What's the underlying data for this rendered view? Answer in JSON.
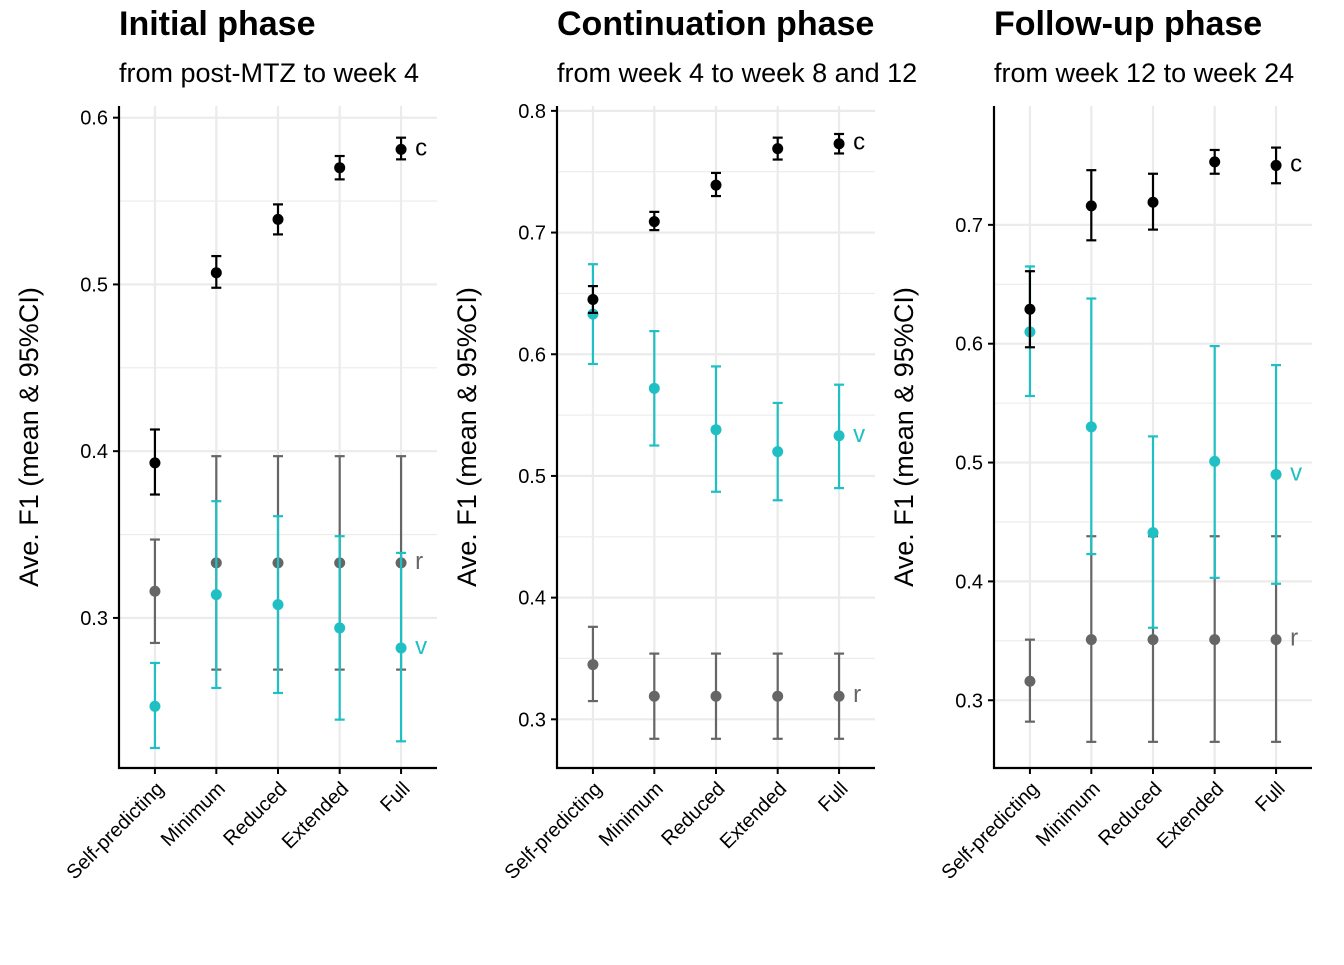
{
  "colors": {
    "c": "#000000",
    "v": "#1fbfc3",
    "r": "#666666",
    "grid": "#ebebeb",
    "axis": "#000000"
  },
  "chart_data": [
    {
      "type": "scatter",
      "title": "Initial phase",
      "subtitle": "from post-MTZ to week 4",
      "ylabel": "Ave. F1 (mean & 95%CI)",
      "xlabel": "",
      "ylim": [
        0.21,
        0.607
      ],
      "yticks": [
        0.3,
        0.4,
        0.5,
        0.6
      ],
      "ytick_labels": [
        "0.3",
        "0.4",
        "0.5",
        "0.6"
      ],
      "grid": true,
      "categories": [
        "Self-predicting",
        "Minimum",
        "Reduced",
        "Extended",
        "Full"
      ],
      "series": [
        {
          "name": "c",
          "color_key": "c",
          "mean": [
            0.393,
            0.507,
            0.539,
            0.57,
            0.581
          ],
          "lower": [
            0.374,
            0.498,
            0.53,
            0.563,
            0.575
          ],
          "upper": [
            0.413,
            0.517,
            0.548,
            0.577,
            0.588
          ]
        },
        {
          "name": "v",
          "color_key": "v",
          "mean": [
            0.247,
            0.314,
            0.308,
            0.294,
            0.282
          ],
          "lower": [
            0.222,
            0.258,
            0.255,
            0.239,
            0.226
          ],
          "upper": [
            0.273,
            0.37,
            0.361,
            0.349,
            0.339
          ]
        },
        {
          "name": "r",
          "color_key": "r",
          "mean": [
            0.316,
            0.333,
            0.333,
            0.333,
            0.333
          ],
          "lower": [
            0.285,
            0.269,
            0.269,
            0.269,
            0.269
          ],
          "upper": [
            0.347,
            0.397,
            0.397,
            0.397,
            0.397
          ]
        }
      ]
    },
    {
      "type": "scatter",
      "title": "Continuation phase",
      "subtitle": "from week 4 to week 8 and 12",
      "ylabel": "Ave. F1 (mean & 95%CI)",
      "xlabel": "",
      "ylim": [
        0.26,
        0.804
      ],
      "yticks": [
        0.3,
        0.4,
        0.5,
        0.6,
        0.7,
        0.8
      ],
      "ytick_labels": [
        "0.3",
        "0.4",
        "0.5",
        "0.6",
        "0.7",
        "0.8"
      ],
      "grid": true,
      "categories": [
        "Self-predicting",
        "Minimum",
        "Reduced",
        "Extended",
        "Full"
      ],
      "series": [
        {
          "name": "c",
          "color_key": "c",
          "mean": [
            0.645,
            0.709,
            0.739,
            0.769,
            0.773
          ],
          "lower": [
            0.634,
            0.702,
            0.73,
            0.76,
            0.765
          ],
          "upper": [
            0.656,
            0.717,
            0.749,
            0.778,
            0.781
          ]
        },
        {
          "name": "v",
          "color_key": "v",
          "mean": [
            0.633,
            0.572,
            0.538,
            0.52,
            0.533
          ],
          "lower": [
            0.592,
            0.525,
            0.487,
            0.48,
            0.49
          ],
          "upper": [
            0.674,
            0.619,
            0.59,
            0.56,
            0.575
          ]
        },
        {
          "name": "r",
          "color_key": "r",
          "mean": [
            0.345,
            0.319,
            0.319,
            0.319,
            0.319
          ],
          "lower": [
            0.315,
            0.284,
            0.284,
            0.284,
            0.284
          ],
          "upper": [
            0.376,
            0.354,
            0.354,
            0.354,
            0.354
          ]
        }
      ]
    },
    {
      "type": "scatter",
      "title": "Follow-up phase",
      "subtitle": "from week 12 to week 24",
      "ylabel": "Ave. F1 (mean & 95%CI)",
      "xlabel": "",
      "ylim": [
        0.243,
        0.8
      ],
      "yticks": [
        0.3,
        0.4,
        0.5,
        0.6,
        0.7
      ],
      "ytick_labels": [
        "0.3",
        "0.4",
        "0.5",
        "0.6",
        "0.7"
      ],
      "grid": true,
      "categories": [
        "Self-predicting",
        "Minimum",
        "Reduced",
        "Extended",
        "Full"
      ],
      "series": [
        {
          "name": "c",
          "color_key": "c",
          "mean": [
            0.629,
            0.716,
            0.719,
            0.753,
            0.75
          ],
          "lower": [
            0.597,
            0.687,
            0.696,
            0.743,
            0.735
          ],
          "upper": [
            0.661,
            0.746,
            0.743,
            0.763,
            0.765
          ]
        },
        {
          "name": "v",
          "color_key": "v",
          "mean": [
            0.61,
            0.53,
            0.441,
            0.501,
            0.49
          ],
          "lower": [
            0.556,
            0.423,
            0.361,
            0.403,
            0.398
          ],
          "upper": [
            0.665,
            0.638,
            0.522,
            0.598,
            0.582
          ]
        },
        {
          "name": "r",
          "color_key": "r",
          "mean": [
            0.316,
            0.351,
            0.351,
            0.351,
            0.351
          ],
          "lower": [
            0.282,
            0.265,
            0.265,
            0.265,
            0.265
          ],
          "upper": [
            0.351,
            0.438,
            0.438,
            0.438,
            0.438
          ]
        }
      ]
    }
  ]
}
